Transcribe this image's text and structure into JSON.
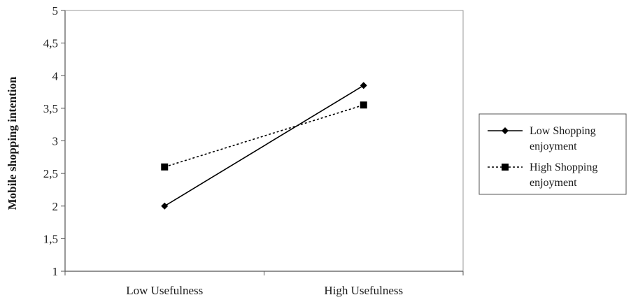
{
  "chart_data": {
    "type": "line",
    "title": "",
    "xlabel": "",
    "ylabel": "Mobile shopping intention",
    "categories": [
      "Low Usefulness",
      "High Usefulness"
    ],
    "ylim": [
      1,
      5
    ],
    "y_ticks": [
      {
        "value": 1,
        "label": "1"
      },
      {
        "value": 1.5,
        "label": "1,5"
      },
      {
        "value": 2,
        "label": "2"
      },
      {
        "value": 2.5,
        "label": "2,5"
      },
      {
        "value": 3,
        "label": "3"
      },
      {
        "value": 3.5,
        "label": "3,5"
      },
      {
        "value": 4,
        "label": "4"
      },
      {
        "value": 4.5,
        "label": "4,5"
      },
      {
        "value": 5,
        "label": "5"
      }
    ],
    "grid": false,
    "legend_position": "right",
    "series": [
      {
        "name_lines": [
          "Low Shopping",
          "enjoyment"
        ],
        "values": [
          2.0,
          3.85
        ],
        "marker": "diamond",
        "line_style": "solid",
        "color": "#000000"
      },
      {
        "name_lines": [
          "High Shopping",
          "enjoyment"
        ],
        "values": [
          2.6,
          3.55
        ],
        "marker": "square",
        "line_style": "dotted",
        "color": "#000000"
      }
    ]
  }
}
